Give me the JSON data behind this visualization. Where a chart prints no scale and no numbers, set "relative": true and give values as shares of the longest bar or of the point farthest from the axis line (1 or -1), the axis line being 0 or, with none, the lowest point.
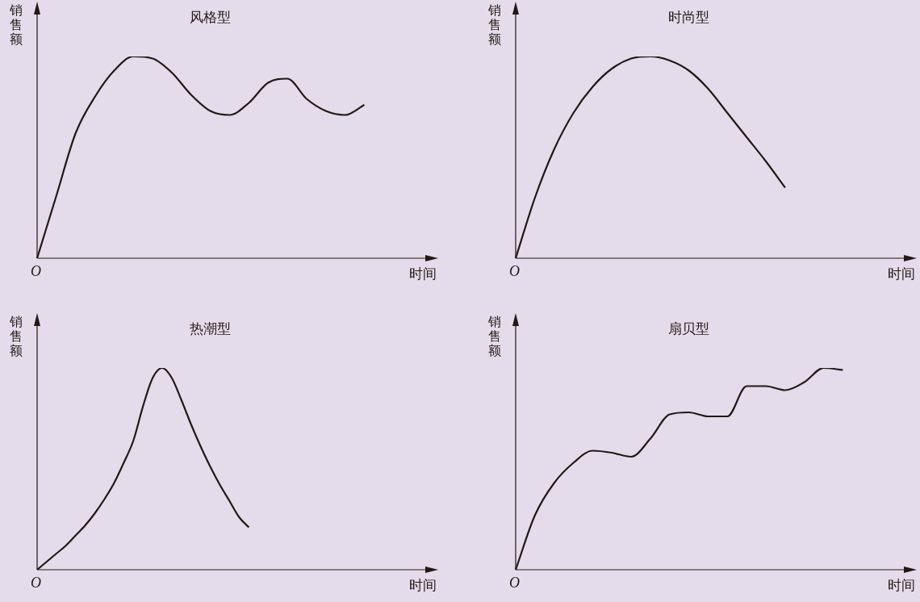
{
  "chart_data": [
    {
      "type": "line",
      "title": "风格型",
      "xlabel": "时间",
      "ylabel": "销售额",
      "relative": true,
      "annotations": [
        "O"
      ],
      "categories": [
        null,
        null,
        null,
        null,
        null,
        null,
        null,
        null,
        null,
        null,
        null,
        null,
        null,
        null,
        null,
        null,
        null,
        null,
        null,
        null,
        null
      ],
      "series": [
        {
          "color": "#231815",
          "values": [
            0,
            0.31,
            0.62,
            0.8,
            0.93,
            1,
            0.99,
            0.92,
            0.81,
            0.73,
            0.71,
            0.77,
            0.87,
            0.89,
            0.79,
            0.73,
            0.71,
            0.76,
            null,
            null,
            null
          ]
        }
      ]
    },
    {
      "type": "line",
      "title": "时尚型",
      "xlabel": "时间",
      "ylabel": "销售额",
      "relative": true,
      "annotations": [
        "O"
      ],
      "categories": [
        null,
        null,
        null,
        null,
        null,
        null,
        null,
        null,
        null,
        null,
        null,
        null,
        null,
        null,
        null,
        null,
        null,
        null,
        null,
        null,
        null
      ],
      "series": [
        {
          "color": "#231815",
          "values": [
            0,
            0.3,
            0.54,
            0.72,
            0.85,
            0.94,
            0.99,
            1,
            0.98,
            0.93,
            0.84,
            0.72,
            0.6,
            0.48,
            0.35,
            null,
            null,
            null,
            null,
            null,
            null
          ]
        }
      ]
    },
    {
      "type": "line",
      "title": "热潮型",
      "xlabel": "时间",
      "ylabel": "销售额",
      "relative": true,
      "annotations": [
        "O"
      ],
      "categories": [
        null,
        null,
        null,
        null,
        null,
        null,
        null,
        null,
        null,
        null,
        null,
        null,
        null,
        null,
        null,
        null,
        null,
        null,
        null,
        null,
        null,
        null,
        null,
        null,
        null,
        null,
        null,
        null,
        null,
        null,
        null,
        null,
        null,
        null,
        null,
        null,
        null,
        null,
        null,
        null,
        null
      ],
      "series": [
        {
          "color": "#231815",
          "values": [
            0,
            0.04,
            0.08,
            0.12,
            0.17,
            0.22,
            0.28,
            0.35,
            0.43,
            0.53,
            0.64,
            0.81,
            0.95,
            1,
            0.95,
            0.84,
            0.72,
            0.61,
            0.51,
            0.42,
            0.34,
            0.26,
            0.21,
            null,
            null,
            null,
            null,
            null,
            null,
            null,
            null,
            null,
            null,
            null,
            null,
            null,
            null,
            null,
            null,
            null,
            null
          ]
        }
      ]
    },
    {
      "type": "line",
      "title": "扇贝型",
      "xlabel": "时间",
      "ylabel": "销售额",
      "relative": true,
      "annotations": [
        "O"
      ],
      "categories": [
        null,
        null,
        null,
        null,
        null,
        null,
        null,
        null,
        null,
        null,
        null,
        null,
        null,
        null,
        null,
        null,
        null,
        null,
        null,
        null,
        null
      ],
      "series": [
        {
          "color": "#231815",
          "values": [
            0,
            0.27,
            0.43,
            0.53,
            0.59,
            0.58,
            0.56,
            0.65,
            0.77,
            0.78,
            0.76,
            0.76,
            0.91,
            0.91,
            0.89,
            0.93,
            1,
            0.99,
            null,
            null,
            null
          ]
        }
      ]
    }
  ]
}
